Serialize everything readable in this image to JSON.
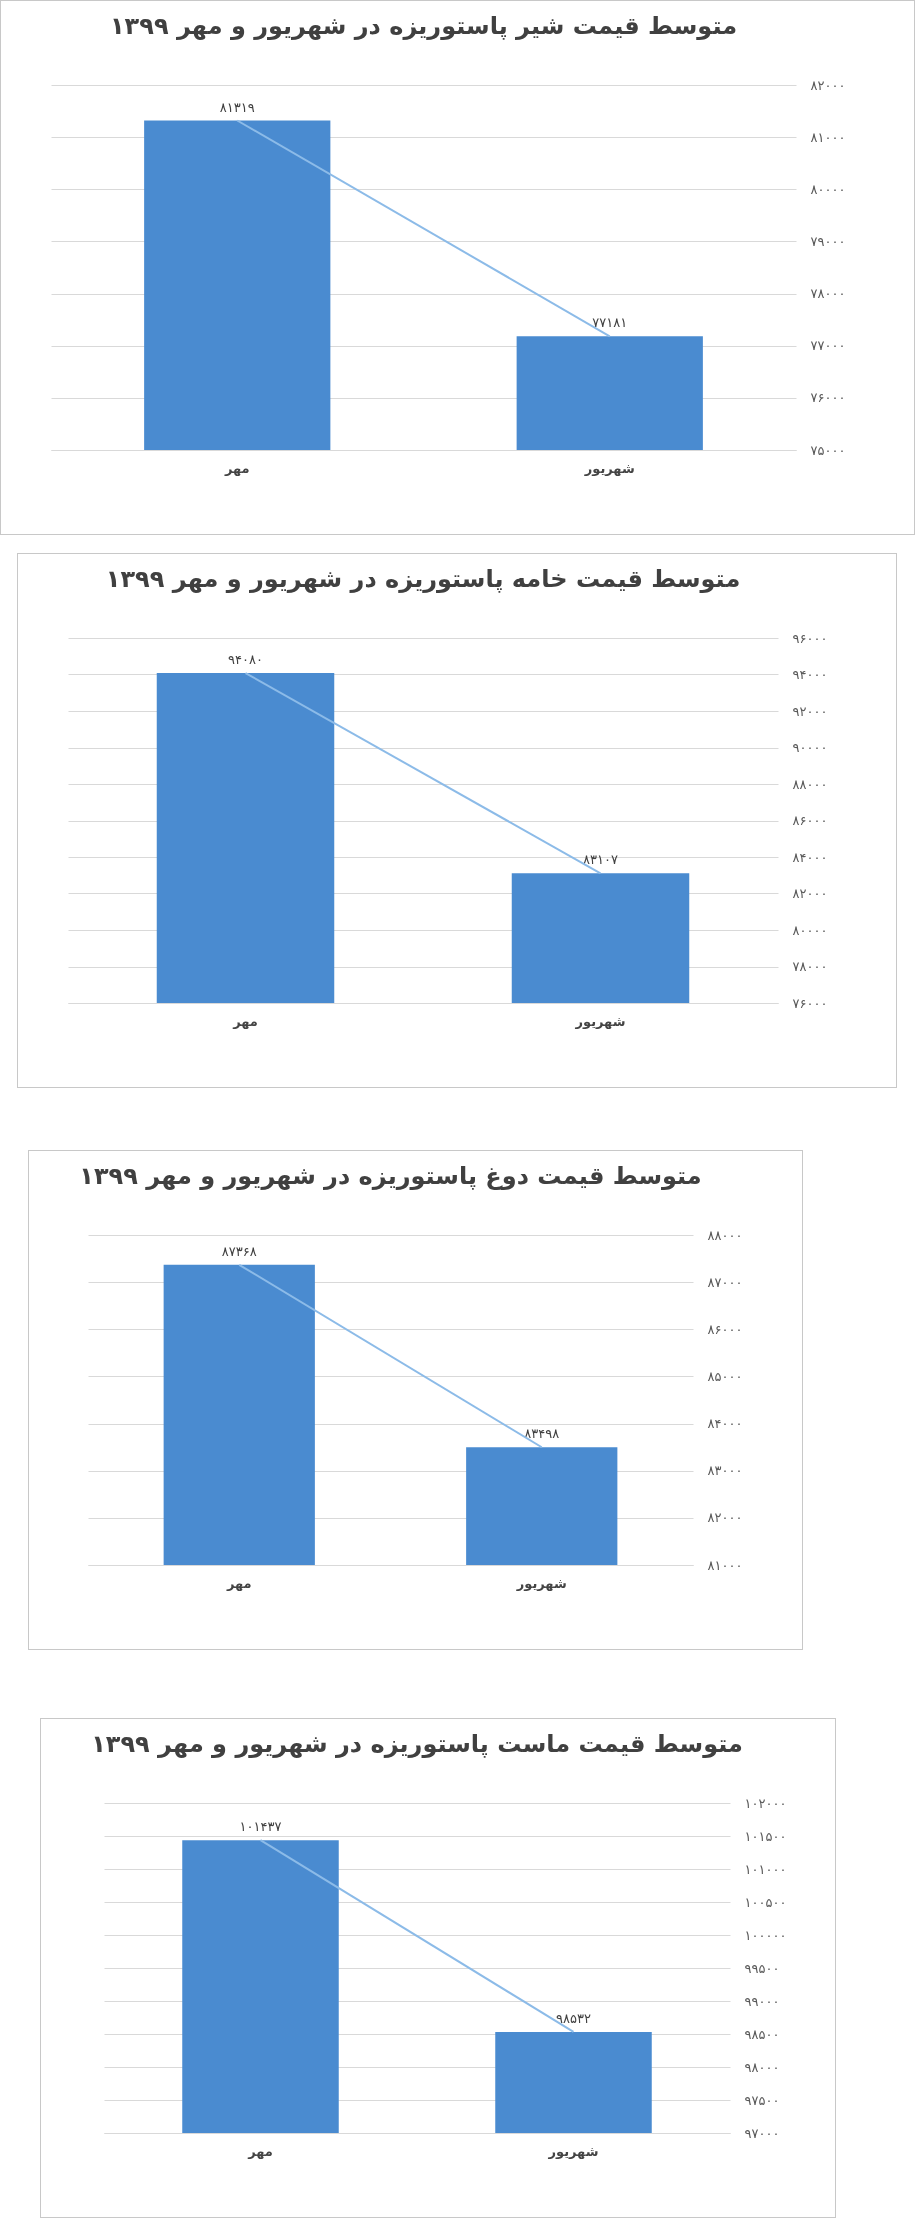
{
  "chart_data": [
    {
      "type": "bar",
      "title": "متوسط قیمت شیر پاستوریزه در شهریور و مهر ۱۳۹۹",
      "categories": [
        "مهر",
        "شهریور"
      ],
      "series": [
        {
          "color": "#4a8bd0",
          "values": [
            81319,
            77181
          ],
          "value_labels": [
            "۸۱۳۱۹",
            "۷۷۱۸۱"
          ]
        },
        {
          "type": "line",
          "color": "#8cbbe8",
          "values": [
            81319,
            77181
          ]
        }
      ],
      "ylim": [
        75000,
        82000
      ],
      "yticks": [
        {
          "value": 75000,
          "label": "۷۵۰۰۰"
        },
        {
          "value": 76000,
          "label": "۷۶۰۰۰"
        },
        {
          "value": 77000,
          "label": "۷۷۰۰۰"
        },
        {
          "value": 78000,
          "label": "۷۸۰۰۰"
        },
        {
          "value": 79000,
          "label": "۷۹۰۰۰"
        },
        {
          "value": 80000,
          "label": "۸۰۰۰۰"
        },
        {
          "value": 81000,
          "label": "۸۱۰۰۰"
        },
        {
          "value": 82000,
          "label": "۸۲۰۰۰"
        }
      ],
      "grid": "y"
    },
    {
      "type": "bar",
      "title": "متوسط قیمت خامه پاستوریزه در شهریور و مهر ۱۳۹۹",
      "categories": [
        "مهر",
        "شهریور"
      ],
      "series": [
        {
          "color": "#4a8bd0",
          "values": [
            94080,
            83107
          ],
          "value_labels": [
            "۹۴۰۸۰",
            "۸۳۱۰۷"
          ]
        },
        {
          "type": "line",
          "color": "#8cbbe8",
          "values": [
            94080,
            83107
          ]
        }
      ],
      "ylim": [
        76000,
        96000
      ],
      "yticks": [
        {
          "value": 76000,
          "label": "۷۶۰۰۰"
        },
        {
          "value": 78000,
          "label": "۷۸۰۰۰"
        },
        {
          "value": 80000,
          "label": "۸۰۰۰۰"
        },
        {
          "value": 82000,
          "label": "۸۲۰۰۰"
        },
        {
          "value": 84000,
          "label": "۸۴۰۰۰"
        },
        {
          "value": 86000,
          "label": "۸۶۰۰۰"
        },
        {
          "value": 88000,
          "label": "۸۸۰۰۰"
        },
        {
          "value": 90000,
          "label": "۹۰۰۰۰"
        },
        {
          "value": 92000,
          "label": "۹۲۰۰۰"
        },
        {
          "value": 94000,
          "label": "۹۴۰۰۰"
        },
        {
          "value": 96000,
          "label": "۹۶۰۰۰"
        }
      ],
      "grid": "y"
    },
    {
      "type": "bar",
      "title": "متوسط قیمت دوغ پاستوریزه در شهریور و مهر ۱۳۹۹",
      "categories": [
        "مهر",
        "شهریور"
      ],
      "series": [
        {
          "color": "#4a8bd0",
          "values": [
            87368,
            83498
          ],
          "value_labels": [
            "۸۷۳۶۸",
            "۸۳۴۹۸"
          ]
        },
        {
          "type": "line",
          "color": "#8cbbe8",
          "values": [
            87368,
            83498
          ]
        }
      ],
      "ylim": [
        81000,
        88000
      ],
      "yticks": [
        {
          "value": 81000,
          "label": "۸۱۰۰۰"
        },
        {
          "value": 82000,
          "label": "۸۲۰۰۰"
        },
        {
          "value": 83000,
          "label": "۸۳۰۰۰"
        },
        {
          "value": 84000,
          "label": "۸۴۰۰۰"
        },
        {
          "value": 85000,
          "label": "۸۵۰۰۰"
        },
        {
          "value": 86000,
          "label": "۸۶۰۰۰"
        },
        {
          "value": 87000,
          "label": "۸۷۰۰۰"
        },
        {
          "value": 88000,
          "label": "۸۸۰۰۰"
        }
      ],
      "grid": "y"
    },
    {
      "type": "bar",
      "title": "متوسط قیمت ماست پاستوریزه در شهریور و مهر ۱۳۹۹",
      "categories": [
        "مهر",
        "شهریور"
      ],
      "series": [
        {
          "color": "#4a8bd0",
          "values": [
            101437,
            98532
          ],
          "value_labels": [
            "۱۰۱۴۳۷",
            "۹۸۵۳۲"
          ]
        },
        {
          "type": "line",
          "color": "#8cbbe8",
          "values": [
            101437,
            98532
          ]
        }
      ],
      "ylim": [
        97000,
        102000
      ],
      "yticks": [
        {
          "value": 97000,
          "label": "۹۷۰۰۰"
        },
        {
          "value": 97500,
          "label": "۹۷۵۰۰"
        },
        {
          "value": 98000,
          "label": "۹۸۰۰۰"
        },
        {
          "value": 98500,
          "label": "۹۸۵۰۰"
        },
        {
          "value": 99000,
          "label": "۹۹۰۰۰"
        },
        {
          "value": 99500,
          "label": "۹۹۵۰۰"
        },
        {
          "value": 100000,
          "label": "۱۰۰۰۰۰"
        },
        {
          "value": 100500,
          "label": "۱۰۰۵۰۰"
        },
        {
          "value": 101000,
          "label": "۱۰۱۰۰۰"
        },
        {
          "value": 101500,
          "label": "۱۰۱۵۰۰"
        },
        {
          "value": 102000,
          "label": "۱۰۲۰۰۰"
        }
      ],
      "grid": "y"
    }
  ]
}
